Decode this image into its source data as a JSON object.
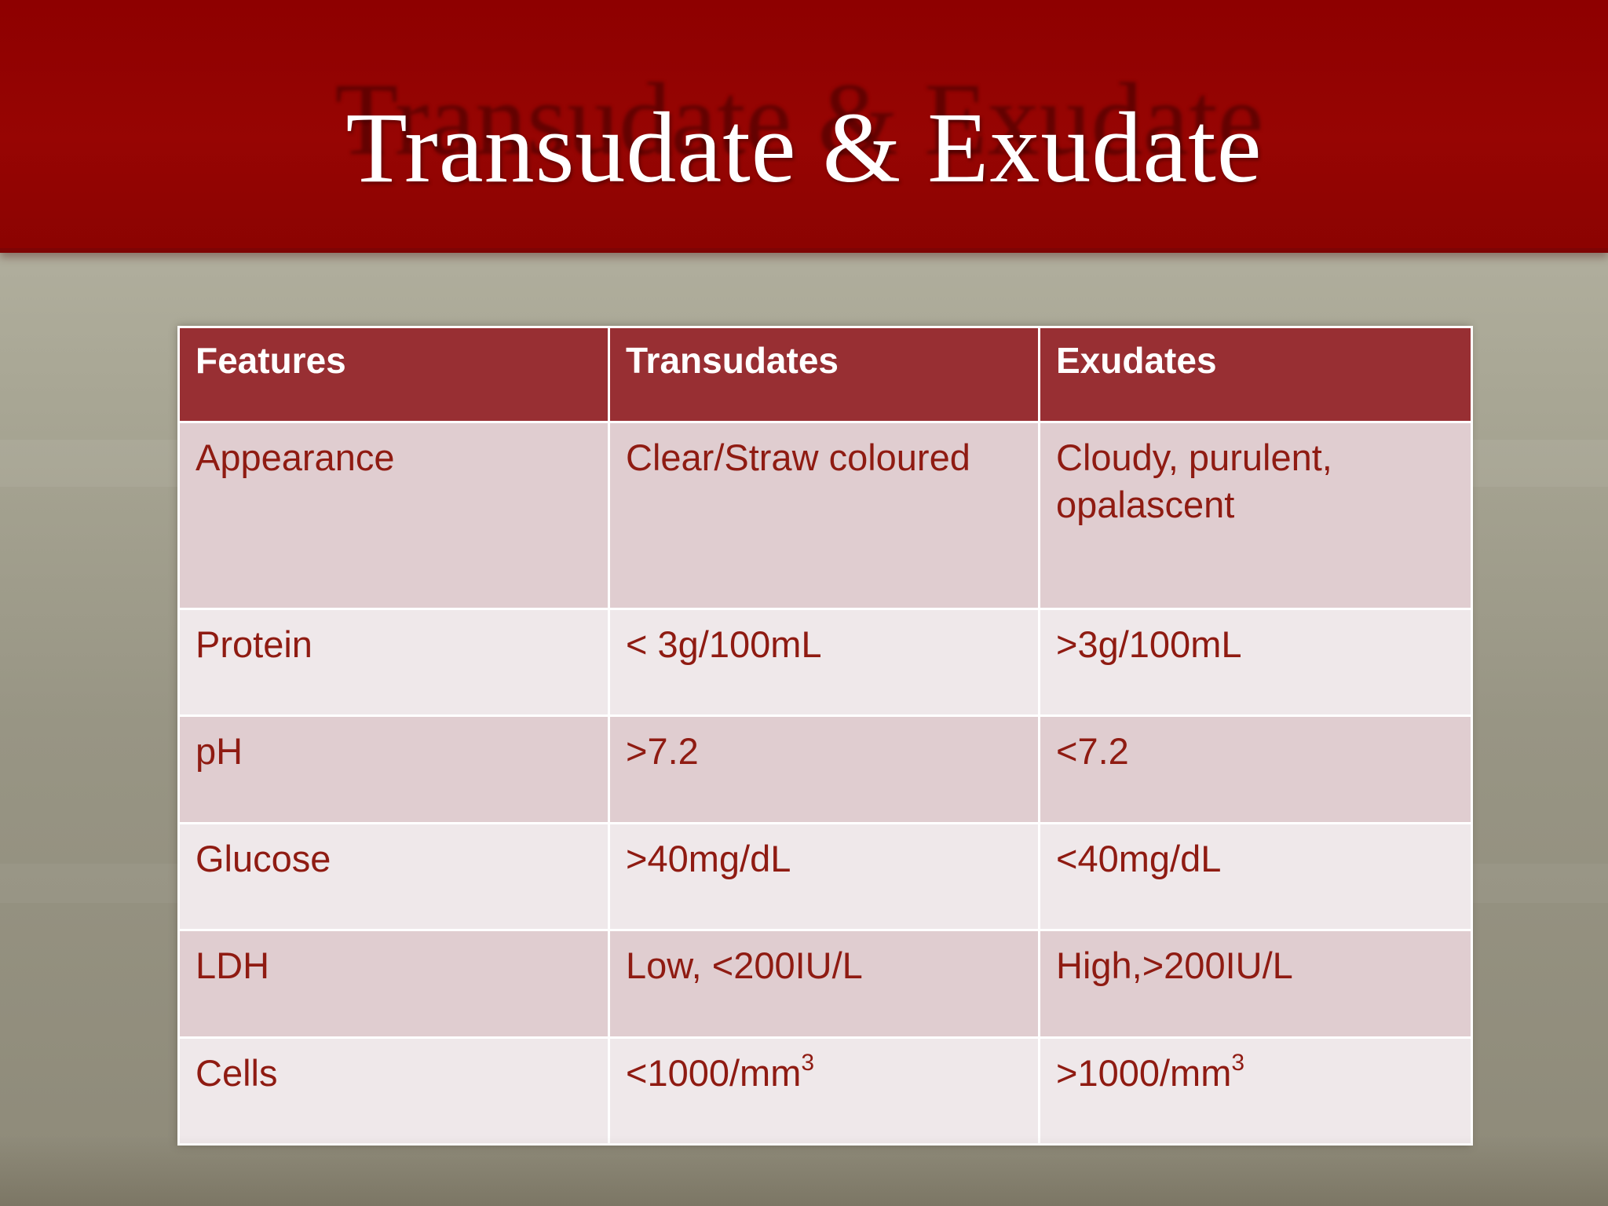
{
  "slide": {
    "title": "Transudate & Exudate"
  },
  "table": {
    "headers": [
      "Features",
      "Transudates",
      "Exudates"
    ],
    "rows": [
      {
        "feature": "Appearance",
        "transudates": "Clear/Straw coloured",
        "exudates": "Cloudy, purulent, opalascent"
      },
      {
        "feature": "Protein",
        "transudates": "< 3g/100mL",
        "exudates": ">3g/100mL"
      },
      {
        "feature": "pH",
        "transudates": ">7.2",
        "exudates": "<7.2"
      },
      {
        "feature": "Glucose",
        "transudates": ">40mg/dL",
        "exudates": "<40mg/dL"
      },
      {
        "feature": "LDH",
        "transudates": "Low, <200IU/L",
        "exudates": "High,>200IU/L"
      },
      {
        "feature": "Cells",
        "transudates": "<1000/mm",
        "transudates_sup": "3",
        "exudates": ">1000/mm",
        "exudates_sup": "3"
      }
    ]
  },
  "colors": {
    "header_band": "#970503",
    "table_header": "#982f33",
    "row_dark": "#e0cdd0",
    "row_light": "#efe8ea",
    "cell_text": "#8f1b12"
  }
}
